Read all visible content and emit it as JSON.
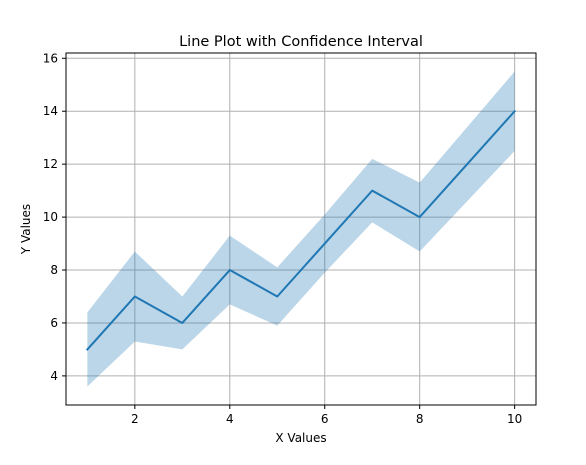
{
  "chart_data": {
    "type": "line",
    "title": "Line Plot with Confidence Interval",
    "xlabel": "X Values",
    "ylabel": "Y Values",
    "x": [
      1,
      2,
      3,
      4,
      5,
      6,
      7,
      8,
      9,
      10
    ],
    "series": [
      {
        "values": [
          5,
          7,
          6,
          8,
          7,
          9,
          11,
          10,
          12,
          14
        ],
        "color": "#1f77b4"
      }
    ],
    "confidence_interval": {
      "lower": [
        3.6,
        5.3,
        5.0,
        6.7,
        5.9,
        7.9,
        9.8,
        8.7,
        10.6,
        12.5
      ],
      "upper": [
        6.4,
        8.7,
        7.0,
        9.3,
        8.1,
        10.1,
        12.2,
        11.3,
        13.4,
        15.5
      ],
      "color": "#1f77b4",
      "opacity": 0.3
    },
    "xlim": [
      0.55,
      10.45
    ],
    "ylim": [
      2.9,
      16.2
    ],
    "xticks": [
      2,
      4,
      6,
      8,
      10
    ],
    "yticks": [
      4,
      6,
      8,
      10,
      12,
      14,
      16
    ],
    "grid": true
  }
}
